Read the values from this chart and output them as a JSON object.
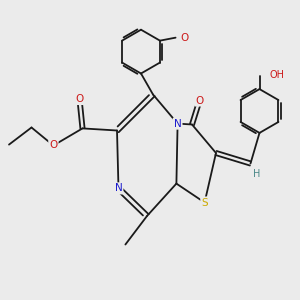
{
  "bg_color": "#ebebeb",
  "bond_color": "#1a1a1a",
  "atom_colors": {
    "N": "#1a1acc",
    "O": "#cc1a1a",
    "S": "#ccaa00",
    "H": "#4a8888"
  },
  "lw": 1.3,
  "fs": 7.5
}
